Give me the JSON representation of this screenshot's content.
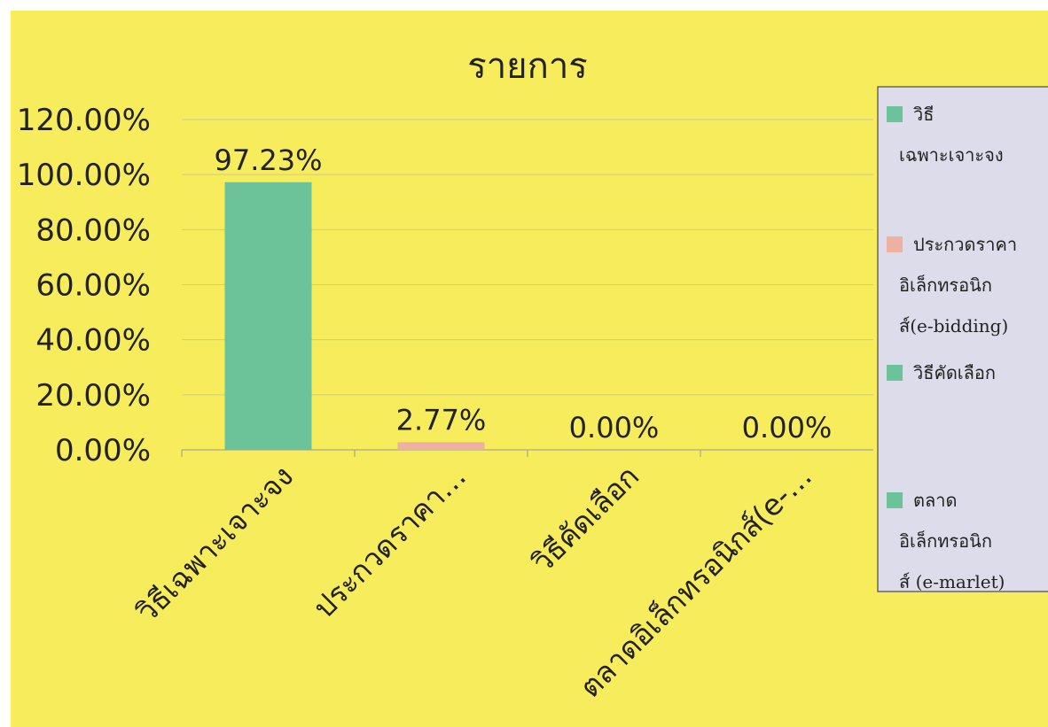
{
  "chart_data": {
    "type": "bar",
    "title": "รายการ",
    "categories": [
      "วิธีเฉพาะเจาะจง",
      "ประกวดราคา…",
      "วิธีคัดเลือก",
      "ตลาดอิเล็กทรอนิกส์(e-…"
    ],
    "values": [
      97.23,
      2.77,
      0.0,
      0.0
    ],
    "data_labels": [
      "97.23%",
      "2.77%",
      "0.00%",
      "0.00%"
    ],
    "ylim": [
      0,
      120
    ],
    "yticks": [
      "0.00%",
      "20.00%",
      "40.00%",
      "60.00%",
      "80.00%",
      "100.00%",
      "120.00%"
    ],
    "xlabel": "",
    "ylabel": "",
    "grid": true,
    "legend_position": "right",
    "legend": [
      {
        "lines": [
          "วิธี",
          "เฉพาะเจาะจง"
        ],
        "color": "#6cc39a"
      },
      {
        "lines": [
          "ประกวดราคา",
          "อิเล็กทรอนิก",
          "ส์(e-bidding)"
        ],
        "color": "#eeb0a0"
      },
      {
        "lines": [
          "วิธีคัดเลือก"
        ],
        "color": "#6cc39a"
      },
      {
        "lines": [
          "ตลาด",
          "อิเล็กทรอนิก",
          "ส์ (e-marlet)"
        ],
        "color": "#6cc39a"
      }
    ],
    "bar_colors": [
      "#6cc39a",
      "#eeb0a0",
      "#6cc39a",
      "#6cc39a"
    ],
    "background_color": "#f7ec5c",
    "legend_background": "#dcdcea"
  }
}
